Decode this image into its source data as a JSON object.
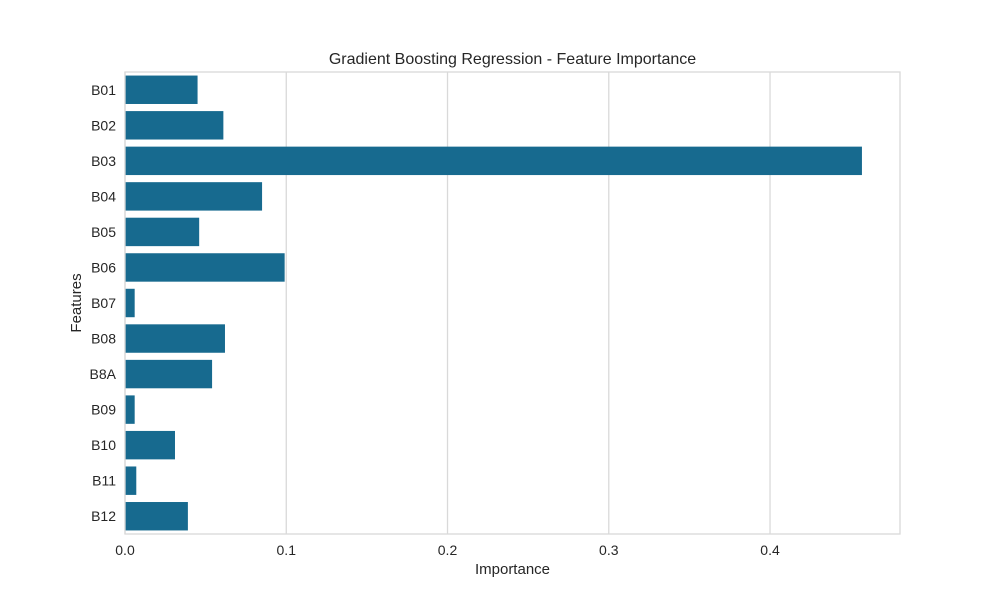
{
  "chart_data": {
    "type": "bar",
    "orientation": "horizontal",
    "title": "Gradient Boosting Regression - Feature Importance",
    "xlabel": "Importance",
    "ylabel": "Features",
    "categories": [
      "B01",
      "B02",
      "B03",
      "B04",
      "B05",
      "B06",
      "B07",
      "B08",
      "B8A",
      "B09",
      "B10",
      "B11",
      "B12"
    ],
    "values": [
      0.045,
      0.061,
      0.457,
      0.085,
      0.046,
      0.099,
      0.006,
      0.062,
      0.054,
      0.006,
      0.031,
      0.007,
      0.039
    ],
    "xlim": [
      0,
      0.4806
    ],
    "xticks": [
      0.0,
      0.1,
      0.2,
      0.3,
      0.4
    ],
    "xtick_labels": [
      "0.0",
      "0.1",
      "0.2",
      "0.3",
      "0.4"
    ],
    "grid": "vertical",
    "bar_color": "#176a8f",
    "grid_color": "#d9d9d9",
    "spine_color": "#d9d9d9"
  }
}
